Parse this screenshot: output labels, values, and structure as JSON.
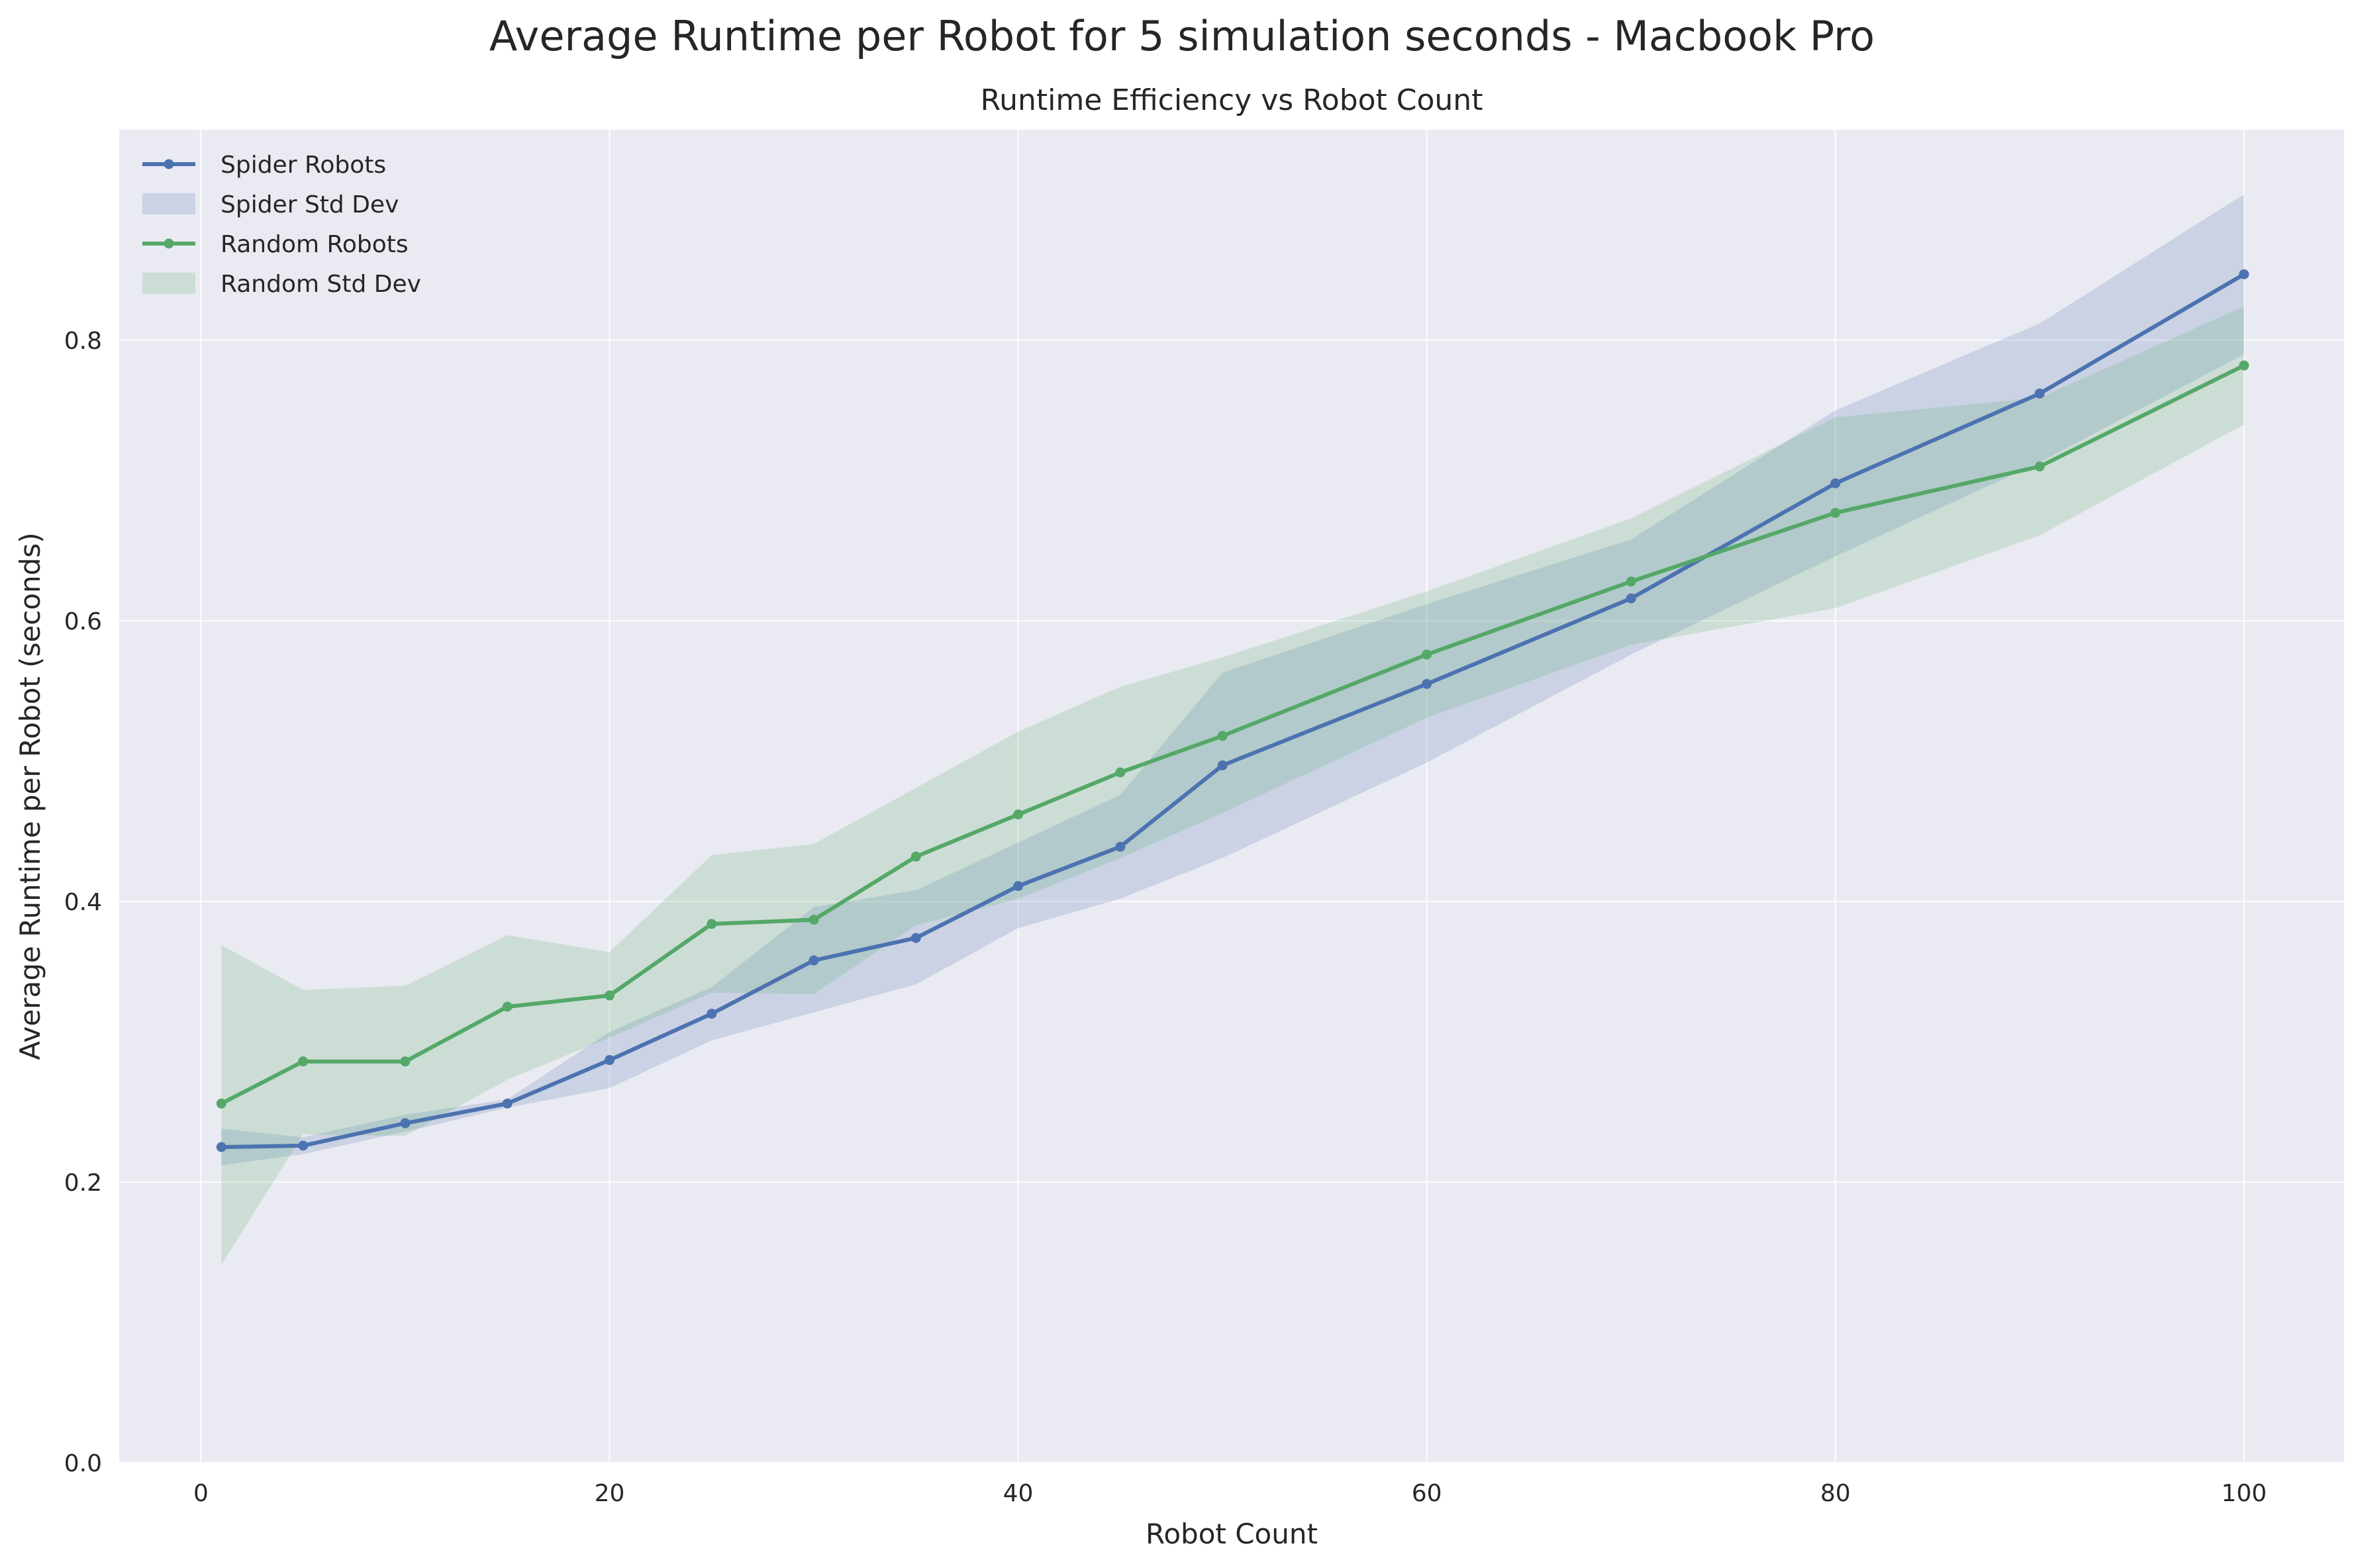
{
  "figure": {
    "suptitle": "Average Runtime per Robot for 5 simulation seconds - Macbook Pro"
  },
  "chart_data": {
    "type": "line",
    "title": "Runtime Efficiency vs Robot Count",
    "xlabel": "Robot Count",
    "ylabel": "Average Runtime per Robot (seconds)",
    "xlim": [
      -4.0,
      104.9
    ],
    "ylim": [
      0.0,
      0.95
    ],
    "xticks": [
      0,
      20,
      40,
      60,
      80,
      100
    ],
    "xtick_labels": [
      "0",
      "20",
      "40",
      "60",
      "80",
      "100"
    ],
    "yticks": [
      0.0,
      0.2,
      0.4,
      0.6,
      0.8
    ],
    "ytick_labels": [
      "0.0",
      "0.2",
      "0.4",
      "0.6",
      "0.8"
    ],
    "grid": true,
    "legend_position": "top-left",
    "x": [
      1,
      5,
      10,
      15,
      20,
      25,
      30,
      35,
      40,
      45,
      50,
      60,
      70,
      80,
      90,
      100
    ],
    "series": [
      {
        "name": "Spider Robots",
        "band_name": "Spider Std Dev",
        "color": "#4C72B0",
        "band_color": "#4C72B0",
        "values": [
          0.225,
          0.226,
          0.242,
          0.256,
          0.287,
          0.32,
          0.358,
          0.374,
          0.411,
          0.439,
          0.497,
          0.555,
          0.616,
          0.698,
          0.762,
          0.847
        ],
        "lower": [
          0.212,
          0.22,
          0.236,
          0.253,
          0.267,
          0.301,
          0.321,
          0.341,
          0.381,
          0.402,
          0.431,
          0.499,
          0.576,
          0.646,
          0.713,
          0.79
        ],
        "upper": [
          0.238,
          0.232,
          0.248,
          0.259,
          0.307,
          0.339,
          0.396,
          0.408,
          0.442,
          0.476,
          0.563,
          0.612,
          0.658,
          0.75,
          0.812,
          0.904
        ]
      },
      {
        "name": "Random Robots",
        "band_name": "Random Std Dev",
        "color": "#55A868",
        "band_color": "#55A868",
        "values": [
          0.256,
          0.286,
          0.286,
          0.325,
          0.333,
          0.384,
          0.387,
          0.432,
          0.462,
          0.492,
          0.518,
          0.576,
          0.628,
          0.677,
          0.71,
          0.782
        ],
        "lower": [
          0.141,
          0.234,
          0.233,
          0.273,
          0.303,
          0.335,
          0.334,
          0.383,
          0.402,
          0.431,
          0.463,
          0.531,
          0.583,
          0.609,
          0.661,
          0.74
        ],
        "upper": [
          0.369,
          0.337,
          0.34,
          0.376,
          0.364,
          0.433,
          0.441,
          0.481,
          0.521,
          0.553,
          0.574,
          0.621,
          0.673,
          0.745,
          0.759,
          0.824
        ]
      }
    ]
  }
}
